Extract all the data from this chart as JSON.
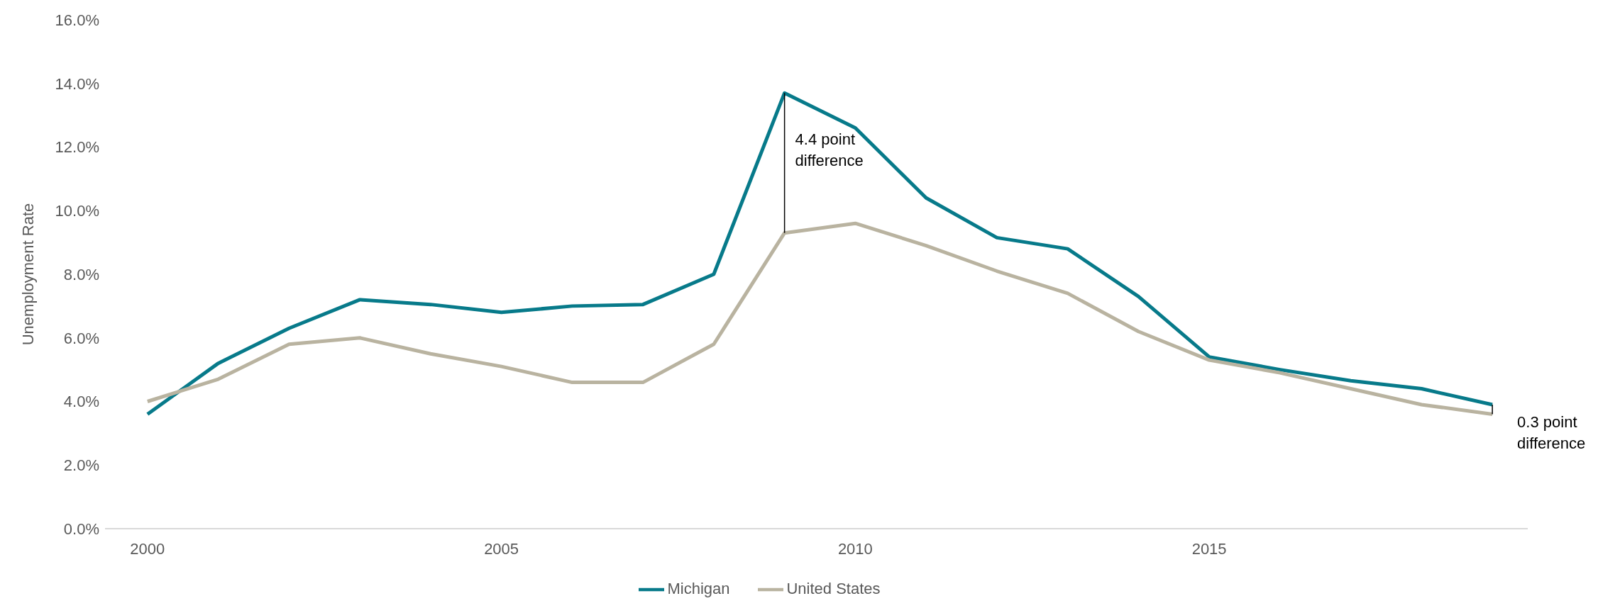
{
  "chart_data": {
    "type": "line",
    "ylabel": "Unemployment Rate",
    "x": [
      2000,
      2001,
      2002,
      2003,
      2004,
      2005,
      2006,
      2007,
      2008,
      2009,
      2010,
      2011,
      2012,
      2013,
      2014,
      2015,
      2016,
      2017,
      2018,
      2019
    ],
    "series": [
      {
        "name": "Michigan",
        "color": "#077a8a",
        "values": [
          3.6,
          5.2,
          6.3,
          7.2,
          7.05,
          6.8,
          7.0,
          7.05,
          8.0,
          13.7,
          12.6,
          10.4,
          9.15,
          8.8,
          7.3,
          5.4,
          5.0,
          4.65,
          4.4,
          3.9
        ]
      },
      {
        "name": "United States",
        "color": "#b9b3a0",
        "values": [
          4.0,
          4.7,
          5.8,
          6.0,
          5.5,
          5.1,
          4.6,
          4.6,
          5.8,
          9.3,
          9.6,
          8.9,
          8.1,
          7.4,
          6.2,
          5.3,
          4.9,
          4.4,
          3.9,
          3.6
        ]
      }
    ],
    "xlim": [
      1999.4,
      2019.5
    ],
    "xticks": [
      2000,
      2005,
      2010,
      2015
    ],
    "ylim": [
      0,
      16
    ],
    "yticks": [
      {
        "value": 0,
        "label": "0.0%"
      },
      {
        "value": 2,
        "label": "2.0%"
      },
      {
        "value": 4,
        "label": "4.0%"
      },
      {
        "value": 6,
        "label": "6.0%"
      },
      {
        "value": 8,
        "label": "8.0%"
      },
      {
        "value": 10,
        "label": "10.0%"
      },
      {
        "value": 12,
        "label": "12.0%"
      },
      {
        "value": 14,
        "label": "14.0%"
      },
      {
        "value": 16,
        "label": "16.0%"
      }
    ],
    "annotations": [
      "4.4 point difference",
      "0.3 point difference"
    ],
    "grid": false,
    "legend": "bottom",
    "marker": "none",
    "line_style": "solid"
  }
}
